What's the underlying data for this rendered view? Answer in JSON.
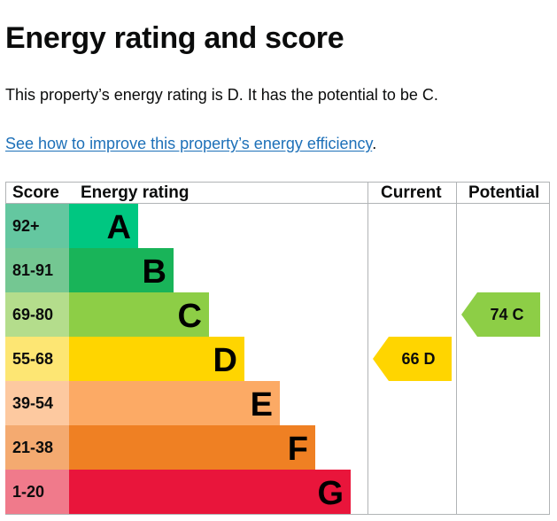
{
  "page": {
    "title": "Energy rating and score",
    "summary": "This property’s energy rating is D. It has the potential to be C.",
    "link_text": "See how to improve this property’s energy efficiency",
    "link_suffix": "."
  },
  "chart_data": {
    "type": "bar",
    "headers": {
      "score": "Score",
      "rating": "Energy rating",
      "current": "Current",
      "potential": "Potential"
    },
    "bands": [
      {
        "band": "A",
        "score_range": "92+",
        "color": "#00c781",
        "score_bg": "#64c7a0"
      },
      {
        "band": "B",
        "score_range": "81-91",
        "color": "#19b459",
        "score_bg": "#74c792"
      },
      {
        "band": "C",
        "score_range": "69-80",
        "color": "#8dce46",
        "score_bg": "#b4dd8c"
      },
      {
        "band": "D",
        "score_range": "55-68",
        "color": "#ffd500",
        "score_bg": "#fde673"
      },
      {
        "band": "E",
        "score_range": "39-54",
        "color": "#fcaa65",
        "score_bg": "#fdc9a0"
      },
      {
        "band": "F",
        "score_range": "21-38",
        "color": "#ef8023",
        "score_bg": "#f4aa70"
      },
      {
        "band": "G",
        "score_range": "1-20",
        "color": "#e9153b",
        "score_bg": "#f07a8b"
      }
    ],
    "current": {
      "score": 66,
      "band": "D",
      "label": "66 D",
      "color": "#ffd500"
    },
    "potential": {
      "score": 74,
      "band": "C",
      "label": "74 C",
      "color": "#8dce46"
    }
  }
}
